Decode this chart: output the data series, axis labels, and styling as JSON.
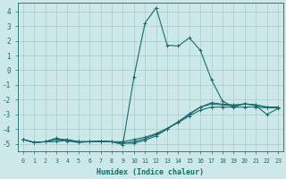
{
  "xlabel": "Humidex (Indice chaleur)",
  "xlim": [
    -0.5,
    23.5
  ],
  "ylim": [
    -5.5,
    4.6
  ],
  "xticks": [
    0,
    1,
    2,
    3,
    4,
    5,
    6,
    7,
    8,
    9,
    10,
    11,
    12,
    13,
    14,
    15,
    16,
    17,
    18,
    19,
    20,
    21,
    22,
    23
  ],
  "yticks": [
    -5,
    -4,
    -3,
    -2,
    -1,
    0,
    1,
    2,
    3,
    4
  ],
  "bg_color": "#cce8e8",
  "line_color": "#1a6b6b",
  "grid_color": "#b0d0d0",
  "lines": [
    {
      "x": [
        0,
        1,
        2,
        3,
        4,
        5,
        6,
        7,
        8,
        9,
        10,
        11,
        12,
        13,
        14,
        15,
        16,
        17,
        18,
        19,
        20,
        21,
        22,
        23
      ],
      "y": [
        -4.7,
        -4.9,
        -4.85,
        -4.85,
        -4.75,
        -4.85,
        -4.85,
        -4.85,
        -4.85,
        -4.85,
        -4.7,
        -4.55,
        -4.3,
        -3.95,
        -3.55,
        -3.1,
        -2.7,
        -2.5,
        -2.5,
        -2.5,
        -2.5,
        -2.5,
        -2.55,
        -2.55
      ],
      "marker": "+"
    },
    {
      "x": [
        0,
        1,
        2,
        3,
        4,
        5,
        6,
        7,
        8,
        9,
        10,
        11,
        12,
        13,
        14,
        15,
        16,
        17,
        18,
        19,
        20,
        21,
        22,
        23
      ],
      "y": [
        -4.7,
        -4.9,
        -4.85,
        -4.7,
        -4.7,
        -4.85,
        -4.85,
        -4.8,
        -4.85,
        -4.95,
        -4.85,
        -4.65,
        -4.35,
        -3.95,
        -3.5,
        -3.0,
        -2.5,
        -2.3,
        -2.35,
        -2.4,
        -2.3,
        -2.35,
        -2.5,
        -2.5
      ],
      "marker": "+"
    },
    {
      "x": [
        0,
        1,
        2,
        3,
        4,
        5,
        6,
        7,
        8,
        9,
        10,
        11,
        12,
        13,
        14,
        15,
        16,
        17,
        18,
        19,
        20,
        21,
        22,
        23
      ],
      "y": [
        -4.7,
        -4.9,
        -4.85,
        -4.7,
        -4.75,
        -4.85,
        -4.85,
        -4.8,
        -4.85,
        -4.95,
        -4.95,
        -4.75,
        -4.45,
        -4.0,
        -3.5,
        -2.95,
        -2.5,
        -2.2,
        -2.3,
        -2.35,
        -2.3,
        -2.35,
        -2.5,
        -2.5
      ],
      "marker": "+"
    },
    {
      "x": [
        0,
        1,
        2,
        3,
        4,
        5,
        6,
        7,
        8,
        9,
        10,
        11,
        12,
        13,
        14,
        15,
        16,
        17,
        18,
        19,
        20,
        21,
        22,
        23
      ],
      "y": [
        -4.7,
        -4.9,
        -4.85,
        -4.6,
        -4.8,
        -4.9,
        -4.85,
        -4.85,
        -4.85,
        -5.05,
        -0.45,
        3.2,
        4.25,
        1.7,
        1.65,
        2.2,
        1.35,
        -0.65,
        -2.1,
        -2.5,
        -2.25,
        -2.4,
        -3.0,
        -2.6
      ],
      "marker": "+"
    }
  ]
}
